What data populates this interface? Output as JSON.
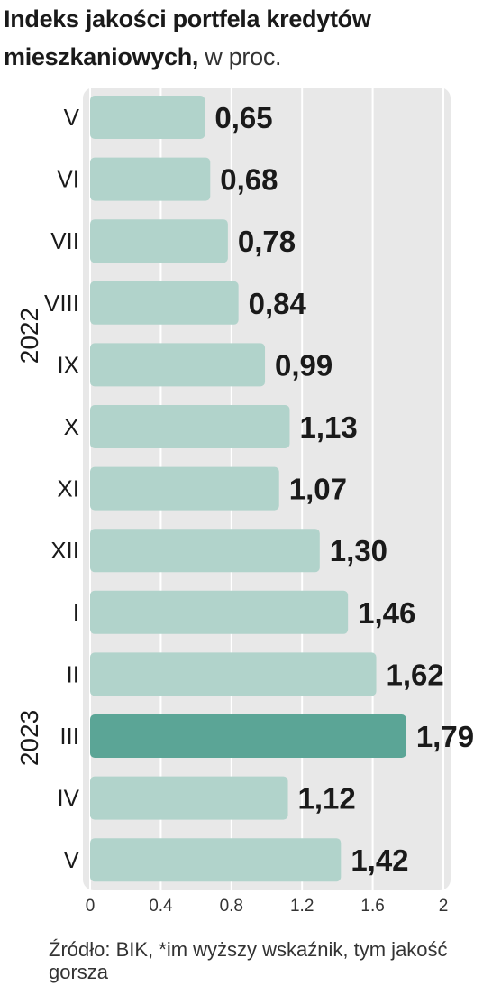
{
  "chart_data": {
    "type": "bar",
    "orientation": "horizontal",
    "title": "Indeks jakości portfela kredytów mieszkaniowych,",
    "unit_suffix": "w proc.",
    "categories": [
      "V",
      "VI",
      "VII",
      "VIII",
      "IX",
      "X",
      "XI",
      "XII",
      "I",
      "II",
      "III",
      "IV",
      "V"
    ],
    "values": [
      0.65,
      0.68,
      0.78,
      0.84,
      0.99,
      1.13,
      1.07,
      1.3,
      1.46,
      1.62,
      1.79,
      1.12,
      1.42
    ],
    "value_labels": [
      "0,65",
      "0,68",
      "0,78",
      "0,84",
      "0,99",
      "1,13",
      "1,07",
      "1,30",
      "1,46",
      "1,62",
      "1,79",
      "1,12",
      "1,42"
    ],
    "year_groups": [
      {
        "label": "2022",
        "from": 0,
        "to": 7
      },
      {
        "label": "2023",
        "from": 8,
        "to": 12
      }
    ],
    "highlight_index": 10,
    "xlim": [
      0,
      2
    ],
    "xticks": [
      "0",
      "0.4",
      "0.8",
      "1.2",
      "1.6",
      "2"
    ],
    "grid": true,
    "colors": {
      "bar": "#b1d3cb",
      "bar_highlight": "#5ba596",
      "panel": "#e8e8e8",
      "grid": "#ffffff"
    }
  },
  "source": "Źródło: BIK, *im wyższy wskaźnik, tym jakość gorsza"
}
